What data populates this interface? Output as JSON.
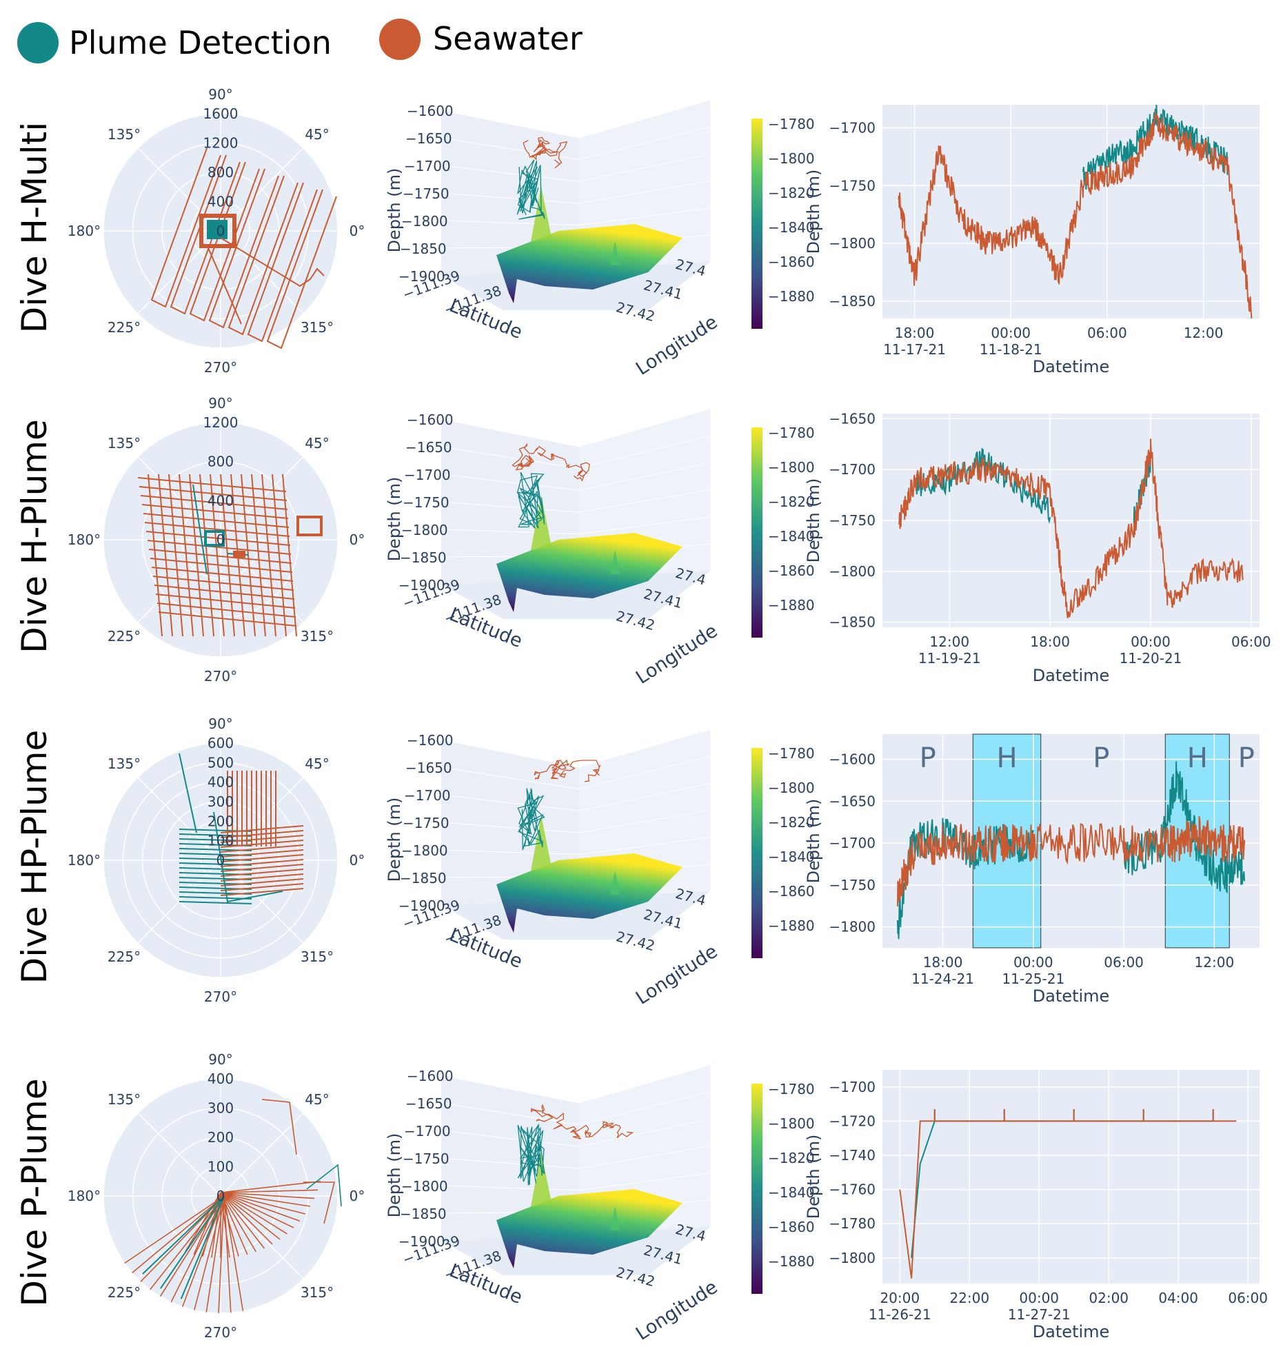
{
  "legend": {
    "items": [
      {
        "label": "Plume Detection",
        "color": "#138888"
      },
      {
        "label": "Seawater",
        "color": "#c95a31"
      }
    ]
  },
  "colors": {
    "plume": "#138888",
    "seawater": "#c95a31",
    "plot_bg": "#e5ecf6",
    "grid": "#ffffff",
    "band": "#8fe3fb",
    "colorscale": [
      "#440154",
      "#3b528b",
      "#21918c",
      "#5ec962",
      "#fde725"
    ]
  },
  "rows": [
    {
      "label": "Dive H-Multi",
      "polar": {
        "angle_ticks": [
          "90°",
          "45°",
          "0°",
          "315°",
          "270°",
          "225°",
          "180°",
          "135°"
        ],
        "radial_ticks": [
          "0",
          "400",
          "800",
          "1200",
          "1600"
        ]
      },
      "surface": {
        "z_ticks": [
          "−1600",
          "−1650",
          "−1700",
          "−1750",
          "−1800",
          "−1850",
          "−1900"
        ],
        "lat_ticks": [
          "−111.39",
          "−111.38"
        ],
        "lon_ticks": [
          "27.4",
          "27.41",
          "27.42"
        ],
        "z_title": "Depth (m)",
        "lat_title": "Latitude",
        "lon_title": "Longitude",
        "colorbar_ticks": [
          "−1780",
          "−1800",
          "−1820",
          "−1840",
          "−1860",
          "−1880"
        ]
      },
      "timeseries": {
        "y_ticks": [
          "−1700",
          "−1750",
          "−1800",
          "−1850"
        ],
        "x_ticks": [
          {
            "time": "18:00",
            "date": "11-17-21"
          },
          {
            "time": "00:00",
            "date": "11-18-21"
          },
          {
            "time": "06:00",
            "date": ""
          },
          {
            "time": "12:00",
            "date": ""
          }
        ],
        "x_title": "Datetime",
        "y_title": "Depth (m)"
      }
    },
    {
      "label": "Dive H-Plume",
      "polar": {
        "angle_ticks": [
          "90°",
          "45°",
          "0°",
          "315°",
          "270°",
          "225°",
          "180°",
          "135°"
        ],
        "radial_ticks": [
          "0",
          "400",
          "800",
          "1200"
        ]
      },
      "surface": {
        "z_ticks": [
          "−1600",
          "−1650",
          "−1700",
          "−1750",
          "−1800",
          "−1850",
          "−1900"
        ],
        "lat_ticks": [
          "−111.39",
          "−111.38"
        ],
        "lon_ticks": [
          "27.4",
          "27.41",
          "27.42"
        ],
        "z_title": "Depth (m)",
        "lat_title": "Latitude",
        "lon_title": "Longitude",
        "colorbar_ticks": [
          "−1780",
          "−1800",
          "−1820",
          "−1840",
          "−1860",
          "−1880"
        ]
      },
      "timeseries": {
        "y_ticks": [
          "−1650",
          "−1700",
          "−1750",
          "−1800",
          "−1850"
        ],
        "x_ticks": [
          {
            "time": "12:00",
            "date": "11-19-21"
          },
          {
            "time": "18:00",
            "date": ""
          },
          {
            "time": "00:00",
            "date": "11-20-21"
          },
          {
            "time": "06:00",
            "date": ""
          }
        ],
        "x_title": "Datetime",
        "y_title": "Depth (m)"
      }
    },
    {
      "label": "Dive HP-Plume",
      "polar": {
        "angle_ticks": [
          "90°",
          "45°",
          "0°",
          "315°",
          "270°",
          "225°",
          "180°",
          "135°"
        ],
        "radial_ticks": [
          "0",
          "100",
          "200",
          "300",
          "400",
          "500",
          "600"
        ]
      },
      "surface": {
        "z_ticks": [
          "−1600",
          "−1650",
          "−1700",
          "−1750",
          "−1800",
          "−1850",
          "−1900"
        ],
        "lat_ticks": [
          "−111.39",
          "−111.38"
        ],
        "lon_ticks": [
          "27.4",
          "27.41",
          "27.42"
        ],
        "z_title": "Depth (m)",
        "lat_title": "Latitude",
        "lon_title": "Longitude",
        "colorbar_ticks": [
          "−1780",
          "−1800",
          "−1820",
          "−1840",
          "−1860",
          "−1880"
        ]
      },
      "timeseries": {
        "y_ticks": [
          "−1600",
          "−1650",
          "−1700",
          "−1750",
          "−1800"
        ],
        "x_ticks": [
          {
            "time": "18:00",
            "date": "11-24-21"
          },
          {
            "time": "00:00",
            "date": "11-25-21"
          },
          {
            "time": "06:00",
            "date": ""
          },
          {
            "time": "12:00",
            "date": ""
          }
        ],
        "x_title": "Datetime",
        "y_title": "Depth (m)",
        "bands": [
          "P",
          "H",
          "P",
          "H",
          "P"
        ]
      }
    },
    {
      "label": "Dive P-Plume",
      "polar": {
        "angle_ticks": [
          "90°",
          "45°",
          "0°",
          "315°",
          "270°",
          "225°",
          "180°",
          "135°"
        ],
        "radial_ticks": [
          "0",
          "100",
          "200",
          "300",
          "400"
        ]
      },
      "surface": {
        "z_ticks": [
          "−1600",
          "−1650",
          "−1700",
          "−1750",
          "−1800",
          "−1850",
          "−1900"
        ],
        "lat_ticks": [
          "−111.39",
          "−111.38"
        ],
        "lon_ticks": [
          "27.4",
          "27.41",
          "27.42"
        ],
        "z_title": "Depth (m)",
        "lat_title": "Latitude",
        "lon_title": "Longitude",
        "colorbar_ticks": [
          "−1780",
          "−1800",
          "−1820",
          "−1840",
          "−1860",
          "−1880"
        ]
      },
      "timeseries": {
        "y_ticks": [
          "−1700",
          "−1720",
          "−1740",
          "−1760",
          "−1780",
          "−1800"
        ],
        "x_ticks": [
          {
            "time": "20:00",
            "date": "11-26-21"
          },
          {
            "time": "22:00",
            "date": ""
          },
          {
            "time": "00:00",
            "date": "11-27-21"
          },
          {
            "time": "02:00",
            "date": ""
          },
          {
            "time": "04:00",
            "date": ""
          },
          {
            "time": "06:00",
            "date": ""
          }
        ],
        "x_title": "Datetime",
        "y_title": "Depth (m)"
      }
    }
  ],
  "chart_data": [
    {
      "type": "line",
      "title": "",
      "xlabel": "Datetime",
      "ylabel": "Depth (m)",
      "ylim": [
        -1865,
        -1680
      ],
      "xlim": [
        "2021-11-17T16:00",
        "2021-11-18T15:30"
      ],
      "x": [
        "2021-11-17T17:00",
        "2021-11-17T18:00",
        "2021-11-17T19:30",
        "2021-11-17T21:00",
        "2021-11-17T22:30",
        "2021-11-18T00:00",
        "2021-11-18T01:30",
        "2021-11-18T03:00",
        "2021-11-18T04:30",
        "2021-11-18T06:00",
        "2021-11-18T07:30",
        "2021-11-18T09:00",
        "2021-11-18T10:30",
        "2021-11-18T12:00",
        "2021-11-18T13:30",
        "2021-11-18T15:00"
      ],
      "series": [
        {
          "name": "Seawater",
          "values": [
            -1760,
            -1830,
            -1720,
            -1780,
            -1800,
            -1795,
            -1785,
            -1830,
            -1750,
            -1740,
            -1735,
            -1695,
            -1710,
            -1720,
            -1735,
            -1860
          ]
        },
        {
          "name": "Plume Detection",
          "values": [
            null,
            null,
            null,
            null,
            null,
            null,
            null,
            null,
            -1745,
            -1725,
            -1720,
            -1690,
            -1700,
            -1715,
            -1730,
            null
          ]
        }
      ],
      "grid": true
    },
    {
      "type": "line",
      "title": "",
      "xlabel": "Datetime",
      "ylabel": "Depth (m)",
      "ylim": [
        -1855,
        -1645
      ],
      "xlim": [
        "2021-11-19T08:00",
        "2021-11-20T06:30"
      ],
      "x": [
        "2021-11-19T09:00",
        "2021-11-19T10:00",
        "2021-11-19T12:00",
        "2021-11-19T14:00",
        "2021-11-19T16:00",
        "2021-11-19T18:00",
        "2021-11-19T19:00",
        "2021-11-19T21:00",
        "2021-11-19T23:00",
        "2021-11-20T00:00",
        "2021-11-20T01:00",
        "2021-11-20T03:00",
        "2021-11-20T05:30"
      ],
      "series": [
        {
          "name": "Seawater",
          "values": [
            -1750,
            -1710,
            -1705,
            -1700,
            -1710,
            -1720,
            -1840,
            -1800,
            -1760,
            -1680,
            -1830,
            -1800,
            -1800
          ]
        },
        {
          "name": "Plume Detection",
          "values": [
            null,
            -1715,
            -1710,
            -1690,
            -1715,
            -1740,
            null,
            null,
            -1750,
            -1690,
            null,
            null,
            null
          ]
        }
      ],
      "grid": true
    },
    {
      "type": "line",
      "title": "",
      "xlabel": "Datetime",
      "ylabel": "Depth (m)",
      "ylim": [
        -1825,
        -1570
      ],
      "xlim": [
        "2021-11-24T14:00",
        "2021-11-25T15:00"
      ],
      "x": [
        "2021-11-24T15:00",
        "2021-11-24T16:00",
        "2021-11-24T18:00",
        "2021-11-24T20:00",
        "2021-11-24T22:00",
        "2021-11-25T00:00",
        "2021-11-25T03:00",
        "2021-11-25T06:00",
        "2021-11-25T08:30",
        "2021-11-25T09:30",
        "2021-11-25T11:00",
        "2021-11-25T12:30",
        "2021-11-25T14:00"
      ],
      "series": [
        {
          "name": "Seawater",
          "values": [
            -1765,
            -1710,
            -1700,
            -1700,
            -1700,
            -1700,
            -1700,
            -1700,
            -1700,
            -1700,
            -1690,
            -1700,
            -1700
          ]
        },
        {
          "name": "Plume Detection",
          "values": [
            -1800,
            -1700,
            -1690,
            -1710,
            -1700,
            -1705,
            null,
            -1720,
            -1700,
            -1620,
            -1710,
            -1740,
            -1730
          ]
        }
      ],
      "bands": [
        {
          "label": "P"
        },
        {
          "label": "H",
          "x0": "2021-11-24T20:00",
          "x1": "2021-11-25T00:30"
        },
        {
          "label": "P"
        },
        {
          "label": "H",
          "x0": "2021-11-25T08:45",
          "x1": "2021-11-25T13:00"
        },
        {
          "label": "P"
        }
      ],
      "grid": true
    },
    {
      "type": "line",
      "title": "",
      "xlabel": "Datetime",
      "ylabel": "Depth (m)",
      "ylim": [
        -1815,
        -1690
      ],
      "xlim": [
        "2021-11-26T19:30",
        "2021-11-27T06:20"
      ],
      "x": [
        "2021-11-26T20:00",
        "2021-11-26T20:20",
        "2021-11-26T20:35",
        "2021-11-26T21:00",
        "2021-11-26T23:00",
        "2021-11-27T01:00",
        "2021-11-27T03:00",
        "2021-11-27T05:00",
        "2021-11-27T05:40"
      ],
      "series": [
        {
          "name": "Seawater",
          "values": [
            -1760,
            -1812,
            -1720,
            -1720,
            -1720,
            -1720,
            -1720,
            -1720,
            -1720
          ]
        },
        {
          "name": "Plume Detection",
          "values": [
            null,
            -1800,
            -1745,
            -1720,
            -1720,
            -1720,
            -1720,
            -1720,
            null
          ]
        }
      ],
      "grid": true
    }
  ]
}
